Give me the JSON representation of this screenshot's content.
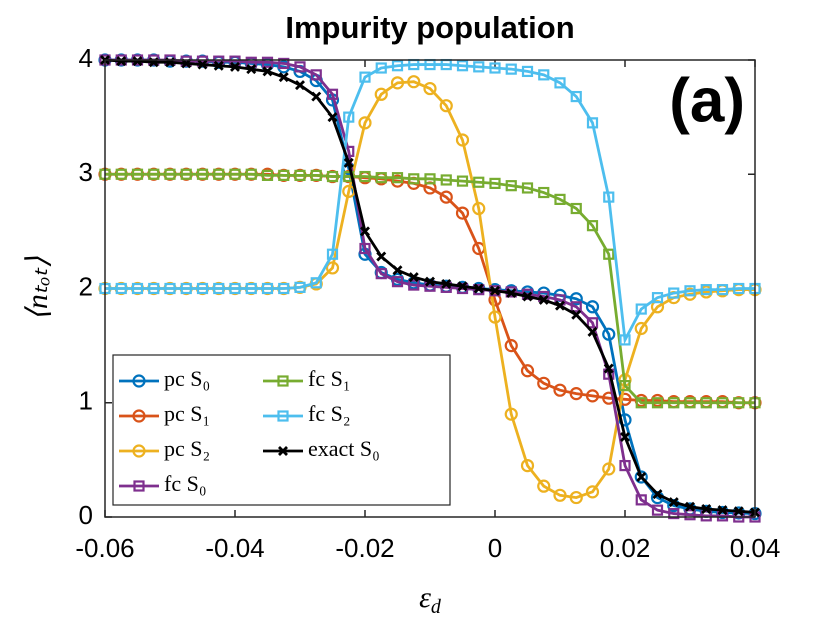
{
  "chart_data": {
    "type": "line",
    "title": "Impurity population",
    "annotation": "(a)",
    "xlabel": "εd",
    "ylabel": "⟨nₜₒₜ⟩",
    "x": [
      -0.06,
      -0.0575,
      -0.055,
      -0.0525,
      -0.05,
      -0.0475,
      -0.045,
      -0.0425,
      -0.04,
      -0.0375,
      -0.035,
      -0.0325,
      -0.03,
      -0.0275,
      -0.025,
      -0.0225,
      -0.02,
      -0.0175,
      -0.015,
      -0.0125,
      -0.01,
      -0.0075,
      -0.005,
      -0.0025,
      0,
      0.0025,
      0.005,
      0.0075,
      0.01,
      0.0125,
      0.015,
      0.0175,
      0.02,
      0.0225,
      0.025,
      0.0275,
      0.03,
      0.0325,
      0.035,
      0.0375,
      0.04
    ],
    "series": [
      {
        "name": "pc S₀",
        "color": "#0072BD",
        "marker": "o",
        "values": [
          4,
          4,
          4,
          4,
          3.99,
          3.99,
          3.99,
          3.98,
          3.98,
          3.97,
          3.96,
          3.94,
          3.9,
          3.82,
          3.65,
          3.05,
          2.3,
          2.14,
          2.08,
          2.05,
          2.03,
          2.02,
          2.01,
          2.0,
          1.99,
          1.98,
          1.97,
          1.96,
          1.94,
          1.91,
          1.84,
          1.6,
          0.85,
          0.35,
          0.17,
          0.1,
          0.07,
          0.05,
          0.04,
          0.035,
          0.03
        ]
      },
      {
        "name": "pc S₁",
        "color": "#D95319",
        "marker": "o",
        "values": [
          3,
          3,
          3,
          3,
          3,
          3,
          3,
          3,
          3,
          3,
          3,
          2.99,
          2.99,
          2.99,
          2.98,
          2.98,
          2.97,
          2.96,
          2.94,
          2.92,
          2.88,
          2.8,
          2.66,
          2.35,
          1.9,
          1.5,
          1.28,
          1.17,
          1.11,
          1.08,
          1.06,
          1.04,
          1.03,
          1.02,
          1.02,
          1.01,
          1.01,
          1.01,
          1.01,
          1.0,
          1.0
        ]
      },
      {
        "name": "pc S₂",
        "color": "#EDB120",
        "marker": "o",
        "values": [
          2,
          2,
          2,
          2,
          2,
          2,
          2,
          2,
          2,
          2,
          2,
          2.0,
          2.01,
          2.04,
          2.18,
          2.85,
          3.45,
          3.7,
          3.8,
          3.81,
          3.75,
          3.6,
          3.3,
          2.7,
          1.75,
          0.9,
          0.45,
          0.27,
          0.19,
          0.17,
          0.22,
          0.42,
          1.2,
          1.65,
          1.84,
          1.92,
          1.95,
          1.97,
          1.98,
          1.99,
          1.99
        ]
      },
      {
        "name": "fc S₀",
        "color": "#7E2F8E",
        "marker": "s",
        "values": [
          4,
          4,
          4,
          4,
          4,
          3.99,
          3.99,
          3.99,
          3.99,
          3.98,
          3.98,
          3.97,
          3.94,
          3.87,
          3.7,
          3.2,
          2.35,
          2.13,
          2.06,
          2.03,
          2.02,
          2.01,
          2.0,
          1.99,
          1.98,
          1.97,
          1.95,
          1.93,
          1.9,
          1.84,
          1.7,
          1.25,
          0.45,
          0.15,
          0.06,
          0.03,
          0.02,
          0.01,
          0.01,
          0.0,
          0.0
        ]
      },
      {
        "name": "fc S₁",
        "color": "#77AC30",
        "marker": "s",
        "values": [
          3,
          3,
          3,
          3,
          3,
          3,
          3,
          3,
          3,
          3,
          2.99,
          2.99,
          2.99,
          2.99,
          2.98,
          2.98,
          2.98,
          2.97,
          2.97,
          2.96,
          2.96,
          2.95,
          2.94,
          2.93,
          2.92,
          2.9,
          2.88,
          2.84,
          2.78,
          2.7,
          2.55,
          2.3,
          1.15,
          1.0,
          1.0,
          1.0,
          1.0,
          1.0,
          1.0,
          1.0,
          1.0
        ]
      },
      {
        "name": "fc S₂",
        "color": "#4DBEEE",
        "marker": "s",
        "values": [
          2,
          2,
          2,
          2,
          2,
          2,
          2,
          2,
          2,
          2,
          2,
          2.0,
          2.01,
          2.05,
          2.3,
          3.5,
          3.85,
          3.93,
          3.95,
          3.96,
          3.96,
          3.96,
          3.95,
          3.94,
          3.93,
          3.92,
          3.9,
          3.87,
          3.8,
          3.68,
          3.45,
          2.8,
          1.55,
          1.82,
          1.92,
          1.96,
          1.98,
          1.99,
          1.99,
          2.0,
          2.0
        ]
      },
      {
        "name": "exact S₀",
        "color": "#000000",
        "marker": "x",
        "values": [
          4.0,
          3.99,
          3.99,
          3.98,
          3.98,
          3.97,
          3.96,
          3.95,
          3.94,
          3.92,
          3.9,
          3.85,
          3.78,
          3.68,
          3.5,
          3.1,
          2.5,
          2.28,
          2.16,
          2.1,
          2.06,
          2.04,
          2.02,
          2.0,
          1.98,
          1.96,
          1.93,
          1.9,
          1.85,
          1.77,
          1.62,
          1.3,
          0.7,
          0.35,
          0.2,
          0.13,
          0.09,
          0.07,
          0.06,
          0.05,
          0.04
        ]
      }
    ],
    "xlim": [
      -0.06,
      0.04
    ],
    "xticks": [
      -0.06,
      -0.04,
      -0.02,
      0,
      0.02,
      0.04
    ],
    "ylim": [
      0,
      4
    ],
    "yticks": [
      0,
      1,
      2,
      3,
      4
    ],
    "grid": false,
    "legend": "lower left"
  }
}
